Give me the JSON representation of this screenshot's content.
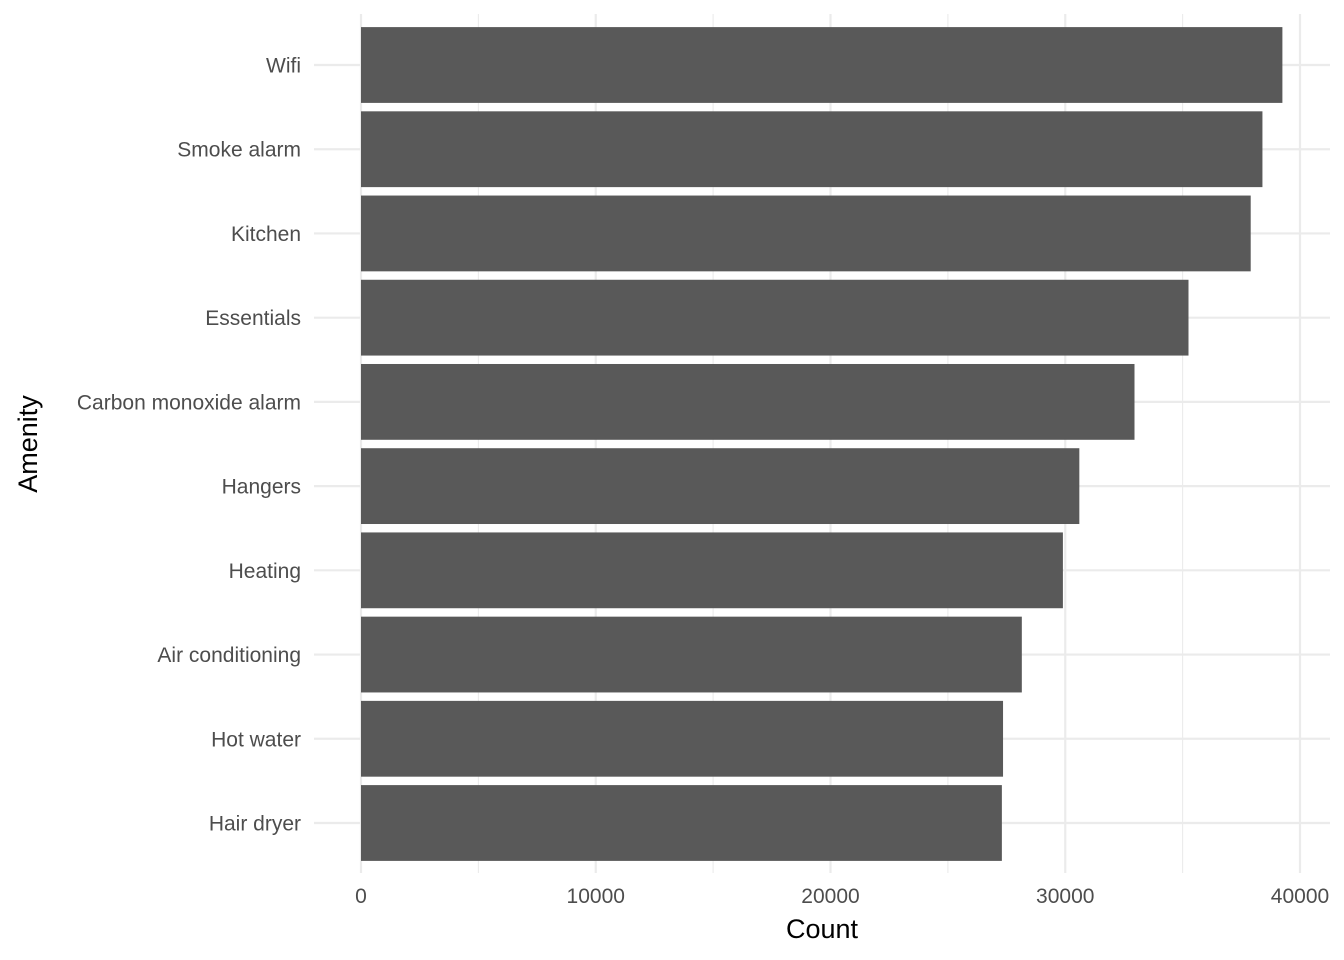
{
  "chart_data": {
    "type": "bar",
    "orientation": "horizontal",
    "categories": [
      "Wifi",
      "Smoke alarm",
      "Kitchen",
      "Essentials",
      "Carbon monoxide alarm",
      "Hangers",
      "Heating",
      "Air conditioning",
      "Hot water",
      "Hair dryer"
    ],
    "values": [
      39250,
      38400,
      37900,
      35250,
      32950,
      30600,
      29900,
      28150,
      27350,
      27300
    ],
    "xlabel": "Count",
    "ylabel": "Amenity",
    "xlim": [
      0,
      40000
    ],
    "x_ticks": [
      "0",
      "10000",
      "20000",
      "30000",
      "40000"
    ],
    "x_tick_values": [
      0,
      10000,
      20000,
      30000,
      40000
    ],
    "bar_color": "#595959",
    "grid_color": "#ebebeb",
    "grid": true,
    "legend": "none"
  }
}
